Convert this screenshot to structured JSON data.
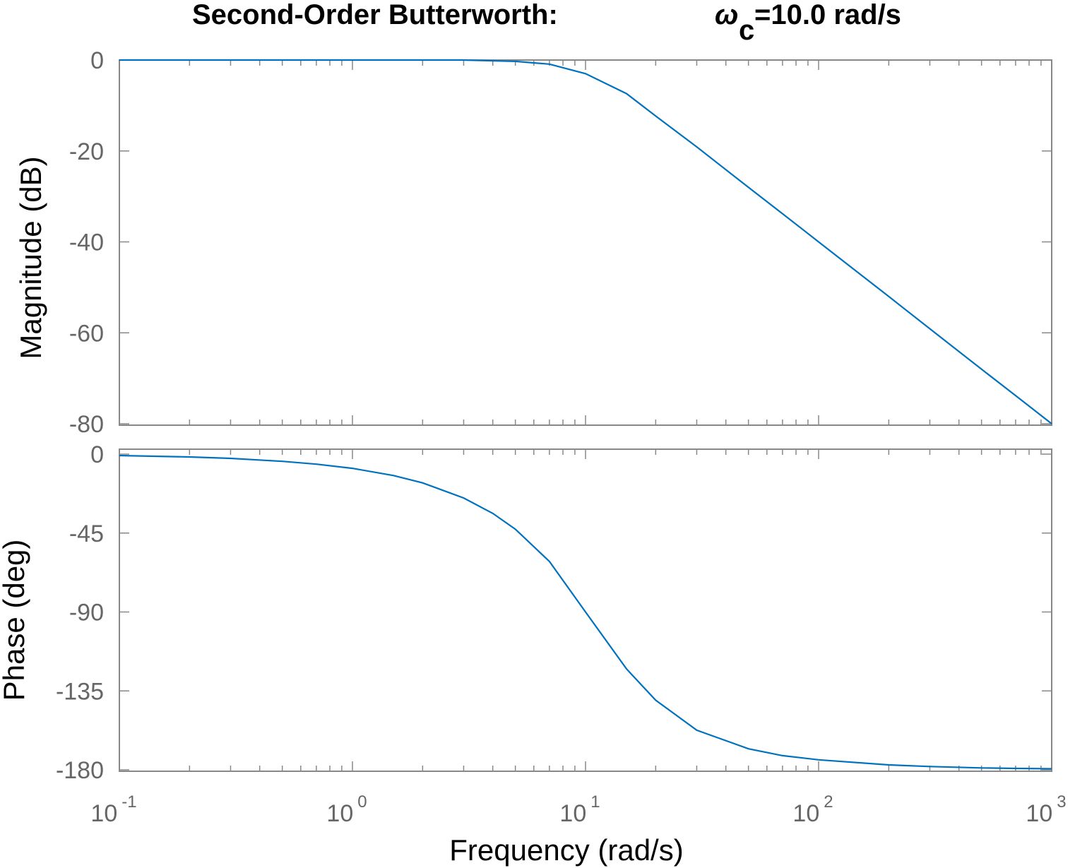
{
  "title": {
    "main": "Second-Order Butterworth:",
    "omega": "ω",
    "sub": "c",
    "value": "=10.0 rad/s"
  },
  "xlabel": "Frequency  (rad/s)",
  "chart_data": [
    {
      "type": "line",
      "name": "magnitude",
      "ylabel": "Magnitude (dB)",
      "xscale": "log",
      "xlim": [
        0.1,
        1000
      ],
      "ylim": [
        -80,
        0
      ],
      "yticks": [
        0,
        -20,
        -40,
        -60,
        -80
      ],
      "ytick_labels": [
        "0",
        "-20",
        "-40",
        "-60",
        "-80"
      ],
      "series": [
        {
          "x": [
            0.1,
            0.2,
            0.5,
            1,
            2,
            3,
            5,
            7,
            10,
            15,
            20,
            30,
            50,
            70,
            100,
            200,
            300,
            500,
            700,
            1000
          ],
          "y": [
            0,
            0,
            0,
            0,
            0,
            0,
            -0.3,
            -0.9,
            -3.0,
            -7.4,
            -12.3,
            -19.1,
            -28.0,
            -33.8,
            -40.0,
            -52.0,
            -59.1,
            -68.0,
            -73.8,
            -80.0
          ]
        }
      ],
      "color": "#0072bd"
    },
    {
      "type": "line",
      "name": "phase",
      "ylabel": "Phase (deg)",
      "xscale": "log",
      "xlim": [
        0.1,
        1000
      ],
      "ylim": [
        -180,
        0
      ],
      "yticks": [
        0,
        -45,
        -90,
        -135,
        -180
      ],
      "ytick_labels": [
        "0",
        "-45",
        "-90",
        "-135",
        "-180"
      ],
      "series": [
        {
          "x": [
            0.1,
            0.2,
            0.3,
            0.5,
            0.7,
            1,
            1.5,
            2,
            3,
            4,
            5,
            7,
            10,
            15,
            20,
            30,
            50,
            70,
            100,
            200,
            300,
            500,
            700,
            1000
          ],
          "y": [
            -0.8,
            -1.6,
            -2.4,
            -4.1,
            -5.7,
            -8.1,
            -12.2,
            -16.4,
            -25.0,
            -33.8,
            -42.8,
            -61.2,
            -90.0,
            -122.5,
            -140.3,
            -157.4,
            -168.0,
            -171.9,
            -174.3,
            -177.2,
            -178.1,
            -178.9,
            -179.2,
            -179.4
          ]
        }
      ],
      "color": "#0072bd"
    }
  ],
  "xticks": {
    "values": [
      0.1,
      1,
      10,
      100,
      1000
    ],
    "base": "10",
    "exponents": [
      "-1",
      "0",
      "1",
      "2",
      "3"
    ]
  }
}
